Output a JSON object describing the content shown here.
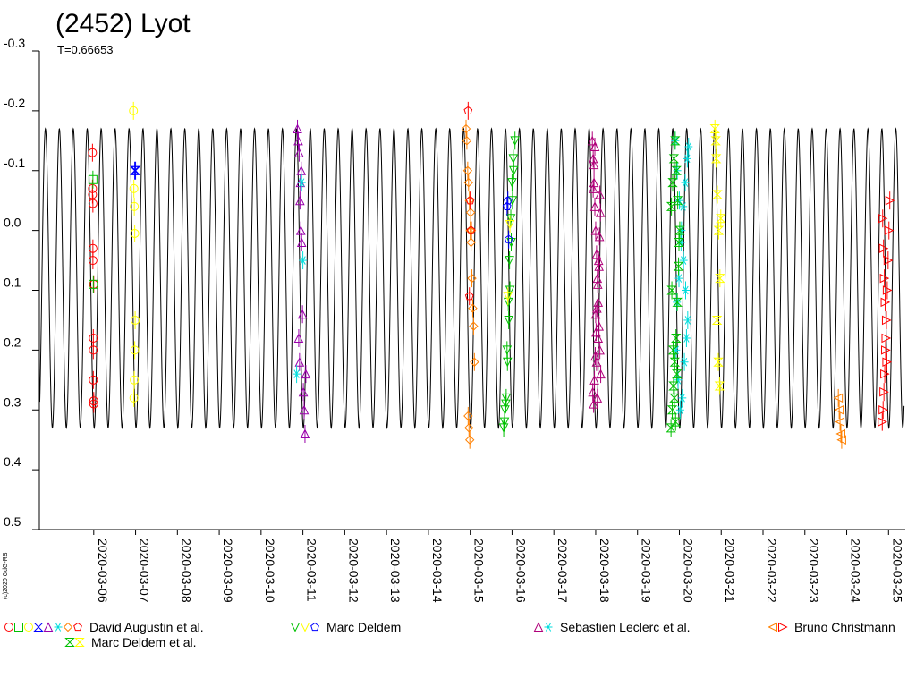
{
  "chart_data": {
    "type": "scatter",
    "title": "(2452) Lyot",
    "subtitle": "T=0.66653",
    "copyright": "(c)2020 GdG-RB",
    "y_axis": {
      "inverted": true,
      "ylim": [
        -0.3,
        0.5
      ],
      "ticks": [
        {
          "value": -0.3,
          "label": "-0.3"
        },
        {
          "value": -0.2,
          "label": "-0.2"
        },
        {
          "value": -0.1,
          "label": "-0.1"
        },
        {
          "value": 0.0,
          "label": "0.0"
        },
        {
          "value": 0.1,
          "label": "0.1"
        },
        {
          "value": 0.2,
          "label": "0.2"
        },
        {
          "value": 0.3,
          "label": "0.3"
        },
        {
          "value": 0.4,
          "label": "0.4"
        },
        {
          "value": 0.5,
          "label": "0.5"
        }
      ]
    },
    "x_axis": {
      "unit": "day",
      "xlim": [
        4.7,
        25.4
      ],
      "ticks": [
        {
          "value": 6,
          "label": "2020-03-06"
        },
        {
          "value": 7,
          "label": "2020-03-07"
        },
        {
          "value": 8,
          "label": "2020-03-08"
        },
        {
          "value": 9,
          "label": "2020-03-09"
        },
        {
          "value": 10,
          "label": "2020-03-10"
        },
        {
          "value": 11,
          "label": "2020-03-11"
        },
        {
          "value": 12,
          "label": "2020-03-12"
        },
        {
          "value": 13,
          "label": "2020-03-13"
        },
        {
          "value": 14,
          "label": "2020-03-14"
        },
        {
          "value": 15,
          "label": "2020-03-15"
        },
        {
          "value": 16,
          "label": "2020-03-16"
        },
        {
          "value": 17,
          "label": "2020-03-17"
        },
        {
          "value": 18,
          "label": "2020-03-18"
        },
        {
          "value": 19,
          "label": "2020-03-19"
        },
        {
          "value": 20,
          "label": "2020-03-20"
        },
        {
          "value": 21,
          "label": "2020-03-21"
        },
        {
          "value": 22,
          "label": "2020-03-22"
        },
        {
          "value": 23,
          "label": "2020-03-23"
        },
        {
          "value": 24,
          "label": "2020-03-24"
        },
        {
          "value": 25,
          "label": "2020-03-25"
        }
      ]
    },
    "model_curve": {
      "period_days": 0.33327,
      "mean": 0.08,
      "amplitude": 0.25,
      "xrange": [
        4.71,
        25.37
      ],
      "color": "#000000"
    },
    "series": [
      {
        "name": "David Augustin et al.",
        "color": "#ff0000",
        "symbol": "circle",
        "x": [
          5.97,
          5.97,
          5.97,
          5.98,
          5.98,
          5.98,
          5.99,
          5.99,
          5.99,
          6.0,
          6.0,
          6.0
        ],
        "y": [
          -0.13,
          -0.07,
          -0.06,
          -0.045,
          0.03,
          0.05,
          0.18,
          0.2,
          0.25,
          0.285,
          0.29,
          0.09
        ]
      },
      {
        "name": "David Augustin et al.",
        "color": "#00c000",
        "symbol": "square",
        "x": [
          5.98,
          5.99
        ],
        "y": [
          -0.085,
          0.09
        ]
      },
      {
        "name": "David Augustin et al.",
        "color": "#ffff00",
        "symbol": "circle",
        "x": [
          6.95,
          6.96,
          6.97,
          6.98,
          6.99,
          6.98,
          6.97,
          6.96
        ],
        "y": [
          -0.2,
          -0.07,
          -0.04,
          0.005,
          0.15,
          0.2,
          0.25,
          0.28
        ]
      },
      {
        "name": "David Augustin et al.",
        "color": "#0000ff",
        "symbol": "bowtie",
        "x": [
          6.98,
          7.0
        ],
        "y": [
          -0.1,
          -0.1
        ]
      },
      {
        "name": "David Augustin et al.",
        "color": "#9900aa",
        "symbol": "triangle",
        "x": [
          10.87,
          10.89,
          10.91,
          10.93,
          10.95,
          10.97,
          10.99,
          11.01,
          11.03,
          11.05,
          11.07,
          10.9,
          10.92,
          10.94,
          10.96
        ],
        "y": [
          -0.17,
          -0.15,
          -0.13,
          -0.05,
          0.0,
          0.02,
          0.14,
          0.27,
          0.3,
          0.34,
          0.24,
          0.18,
          0.22,
          -0.08,
          -0.1
        ]
      },
      {
        "name": "David Augustin et al.",
        "color": "#00dddd",
        "symbol": "star",
        "x": [
          10.85,
          10.97,
          11.0
        ],
        "y": [
          0.24,
          -0.08,
          0.05
        ]
      },
      {
        "name": "David Augustin et al.",
        "color": "#ff8000",
        "symbol": "diamond",
        "x": [
          14.9,
          14.92,
          14.94,
          14.96,
          14.98,
          15.0,
          15.02,
          15.04,
          15.06,
          15.08,
          15.1,
          14.95,
          14.97,
          14.99,
          15.01,
          15.03
        ],
        "y": [
          -0.17,
          -0.15,
          -0.1,
          -0.08,
          -0.05,
          0.0,
          0.02,
          0.08,
          0.13,
          0.16,
          0.22,
          0.31,
          0.33,
          0.35,
          -0.03,
          0.0
        ]
      },
      {
        "name": "David Augustin et al.",
        "color": "#ff0000",
        "symbol": "pentagon",
        "x": [
          14.95,
          14.98,
          15.0,
          15.02
        ],
        "y": [
          -0.2,
          0.11,
          -0.05,
          0.0
        ]
      },
      {
        "name": "Marc Deldem",
        "color": "#00c000",
        "symbol": "triangle-down",
        "x": [
          15.8,
          15.83,
          15.86,
          15.89,
          15.92,
          15.95,
          15.98,
          16.01,
          16.04,
          16.07,
          15.82,
          15.85,
          15.88,
          15.91,
          15.94,
          15.97,
          16.0,
          16.03
        ],
        "y": [
          0.33,
          0.3,
          0.28,
          0.22,
          0.15,
          0.1,
          0.02,
          -0.05,
          -0.1,
          -0.15,
          0.32,
          0.29,
          0.2,
          0.12,
          0.05,
          -0.02,
          -0.08,
          -0.12
        ]
      },
      {
        "name": "Marc Deldem",
        "color": "#ffff00",
        "symbol": "triangle-down",
        "x": [
          15.9,
          15.95
        ],
        "y": [
          0.11,
          -0.01
        ]
      },
      {
        "name": "Marc Deldem",
        "color": "#0000ff",
        "symbol": "pentagon",
        "x": [
          15.88,
          15.9,
          15.92
        ],
        "y": [
          -0.04,
          -0.05,
          0.015
        ]
      },
      {
        "name": "Sebastien Leclerc et al.",
        "color": "#b0007a",
        "symbol": "triangle",
        "x": [
          17.92,
          17.94,
          17.96,
          17.98,
          18.0,
          18.02,
          18.04,
          18.06,
          18.08,
          18.1,
          18.12,
          17.93,
          17.95,
          17.97,
          17.99,
          18.01,
          18.03,
          18.05,
          18.07,
          18.09,
          18.11,
          17.94,
          17.96,
          17.98,
          18.0,
          18.02,
          18.04,
          18.06,
          18.08,
          18.1
        ],
        "y": [
          -0.15,
          -0.12,
          -0.08,
          -0.04,
          0.0,
          0.04,
          0.08,
          0.12,
          0.16,
          0.2,
          0.24,
          0.27,
          0.29,
          0.25,
          0.21,
          0.17,
          0.13,
          0.09,
          0.05,
          0.01,
          -0.03,
          -0.07,
          -0.11,
          -0.14,
          0.14,
          0.22,
          0.28,
          0.18,
          0.06,
          -0.06
        ]
      },
      {
        "name": "Sebastien Leclerc et al.",
        "color": "#00dddd",
        "symbol": "star",
        "x": [
          19.9,
          19.95,
          20.0,
          20.05,
          20.1,
          20.15,
          20.2,
          19.92,
          19.97,
          20.02,
          20.07,
          20.12,
          20.17,
          19.94,
          19.99,
          20.04,
          20.09,
          20.14,
          20.19,
          20.22
        ],
        "y": [
          -0.15,
          -0.1,
          -0.05,
          0.0,
          0.05,
          0.1,
          0.15,
          0.2,
          0.25,
          0.3,
          0.28,
          0.22,
          0.18,
          0.12,
          0.08,
          0.02,
          -0.04,
          -0.08,
          -0.12,
          -0.14
        ]
      },
      {
        "name": "Bruno Christmann",
        "color": "#ff8000",
        "symbol": "triangle-left",
        "x": [
          23.8,
          23.82,
          23.84,
          23.86,
          23.88
        ],
        "y": [
          0.28,
          0.3,
          0.32,
          0.34,
          0.35
        ]
      },
      {
        "name": "Bruno Christmann",
        "color": "#ff0000",
        "symbol": "triangle-right",
        "x": [
          24.85,
          24.87,
          24.89,
          24.91,
          24.93,
          24.95,
          24.97,
          24.99,
          25.01,
          25.03,
          24.86,
          24.88,
          24.9,
          24.92,
          24.94,
          24.96
        ],
        "y": [
          0.32,
          0.3,
          0.27,
          0.24,
          0.2,
          0.15,
          0.1,
          0.05,
          0.0,
          -0.05,
          -0.02,
          0.03,
          0.08,
          0.12,
          0.18,
          0.22
        ]
      },
      {
        "name": "Marc Deldem et al.",
        "color": "#00c000",
        "symbol": "bowtie",
        "x": [
          19.8,
          19.83,
          19.86,
          19.89,
          19.92,
          19.95,
          19.98,
          20.01,
          19.81,
          19.84,
          19.87,
          19.9,
          19.93,
          19.96,
          19.99,
          19.82,
          19.85,
          19.88,
          19.91,
          19.94
        ],
        "y": [
          0.33,
          0.3,
          0.26,
          0.22,
          0.18,
          0.12,
          0.06,
          0.0,
          -0.04,
          -0.08,
          -0.12,
          -0.15,
          -0.1,
          -0.05,
          0.02,
          0.1,
          0.2,
          0.28,
          0.32,
          0.24
        ]
      },
      {
        "name": "Marc Deldem et al.",
        "color": "#ffff00",
        "symbol": "bowtie",
        "x": [
          20.85,
          20.88,
          20.91,
          20.94,
          20.97,
          20.9,
          20.93,
          20.96,
          20.87,
          20.99
        ],
        "y": [
          -0.17,
          -0.12,
          -0.06,
          0.0,
          0.08,
          0.15,
          0.22,
          0.26,
          -0.15,
          -0.02
        ]
      }
    ],
    "legend": [
      {
        "label": "David Augustin et al.",
        "markers": [
          {
            "color": "#ff0000",
            "symbol": "circle"
          },
          {
            "color": "#00c000",
            "symbol": "square"
          },
          {
            "color": "#ffff00",
            "symbol": "circle"
          },
          {
            "color": "#0000ff",
            "symbol": "bowtie"
          },
          {
            "color": "#9900aa",
            "symbol": "triangle"
          },
          {
            "color": "#00dddd",
            "symbol": "star"
          },
          {
            "color": "#ff8000",
            "symbol": "diamond"
          },
          {
            "color": "#ff0000",
            "symbol": "pentagon"
          }
        ]
      },
      {
        "label": "Marc Deldem",
        "markers": [
          {
            "color": "#00c000",
            "symbol": "triangle-down"
          },
          {
            "color": "#ffff00",
            "symbol": "triangle-down"
          },
          {
            "color": "#0000ff",
            "symbol": "pentagon"
          }
        ]
      },
      {
        "label": "Sebastien Leclerc et al.",
        "markers": [
          {
            "color": "#b0007a",
            "symbol": "triangle"
          },
          {
            "color": "#00dddd",
            "symbol": "star"
          }
        ]
      },
      {
        "label": "Bruno Christmann",
        "markers": [
          {
            "color": "#ff8000",
            "symbol": "triangle-left"
          },
          {
            "color": "#ff0000",
            "symbol": "triangle-right"
          }
        ]
      },
      {
        "label": "Marc Deldem et al.",
        "markers": [
          {
            "color": "#00c000",
            "symbol": "bowtie"
          },
          {
            "color": "#ffff00",
            "symbol": "bowtie"
          }
        ]
      }
    ],
    "grid": false,
    "legend_placement": "bottom"
  }
}
